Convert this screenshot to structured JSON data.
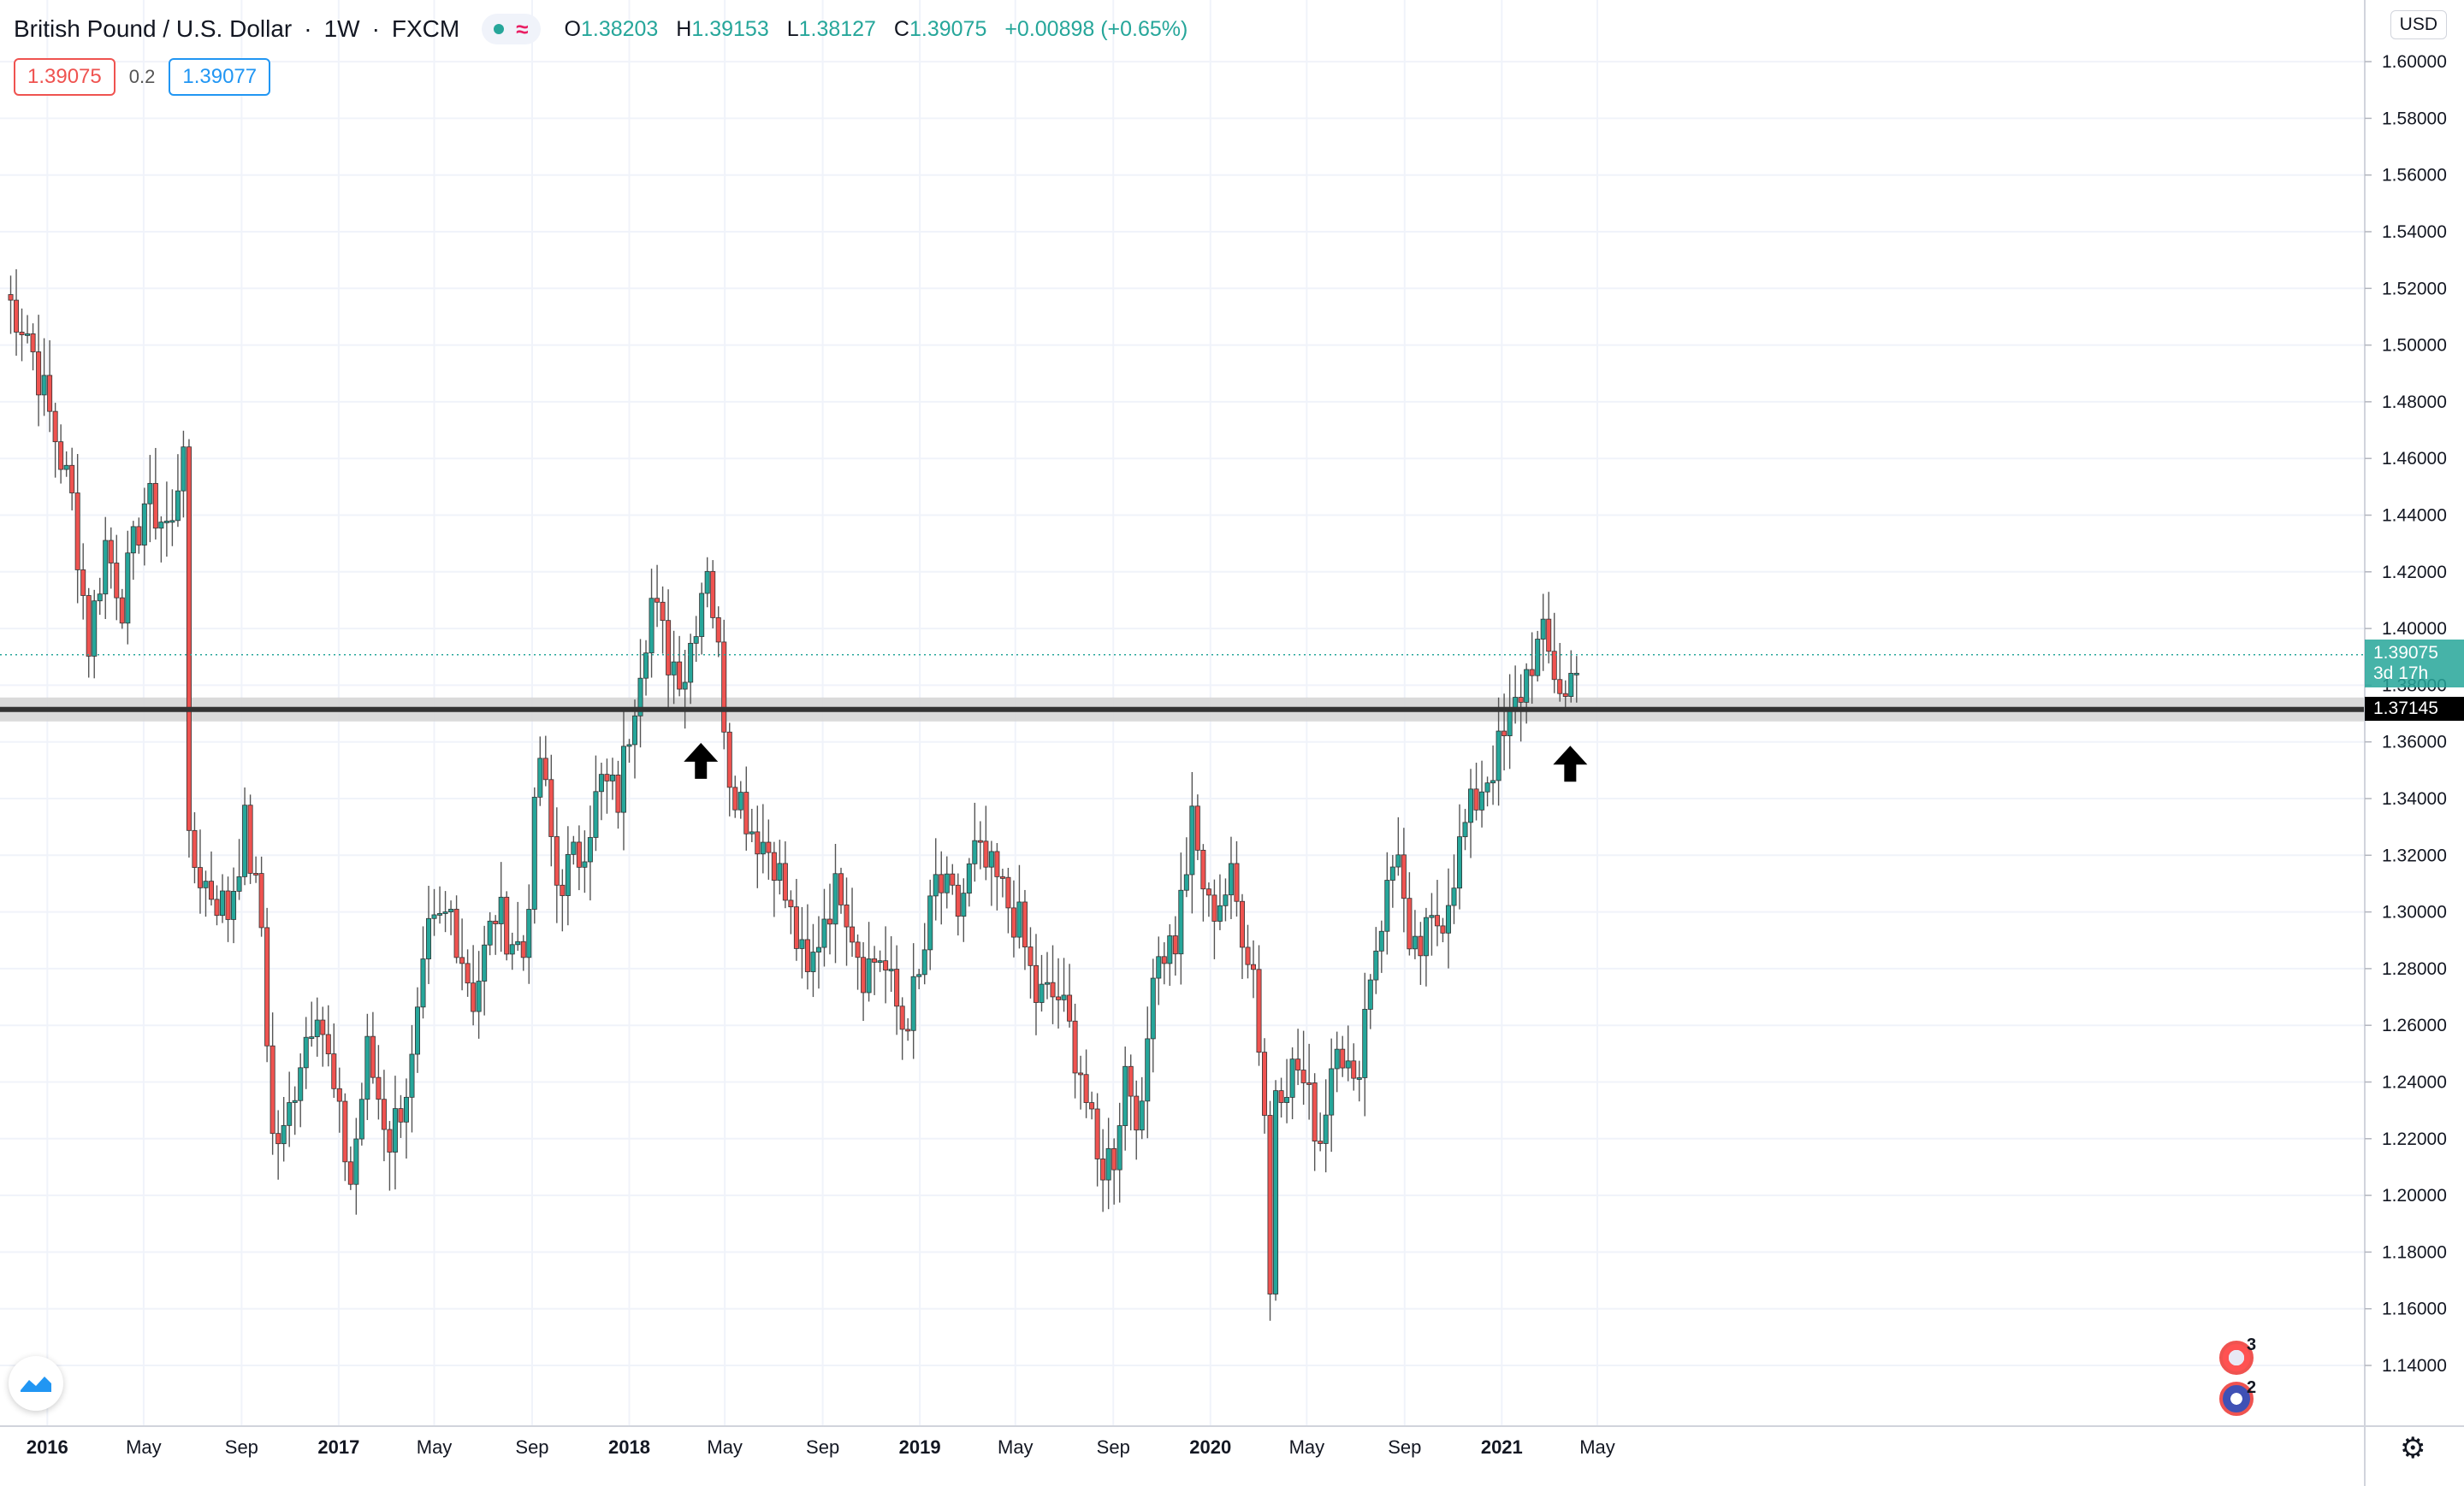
{
  "header": {
    "symbol_name": "British Pound / U.S. Dollar",
    "interval": "1W",
    "exchange": "FXCM",
    "ohlc": {
      "open_label": "O",
      "open": "1.38203",
      "high_label": "H",
      "high": "1.39153",
      "low_label": "L",
      "low": "1.38127",
      "close_label": "C",
      "close": "1.39075",
      "change": "+0.00898 (+0.65%)"
    }
  },
  "quote": {
    "sell": "1.39075",
    "spread": "0.2",
    "buy": "1.39077"
  },
  "price_axis": {
    "currency": "USD",
    "current_price": "1.39075",
    "countdown": "3d 17h",
    "level_price": "1.37145"
  },
  "events": {
    "us_count": "3",
    "gb_count": "2"
  },
  "colors": {
    "up": "#26a69a",
    "down": "#ef5350",
    "level_line": "#333333",
    "level_band": "#d6d6d6"
  },
  "icons": {
    "logo": "tradingview-logo-icon",
    "settings": "gear-icon",
    "arrow": "arrow-up-icon"
  },
  "chart_data": {
    "type": "candlestick",
    "ylim": [
      1.13,
      1.61
    ],
    "y_ticks": [
      "1.14000",
      "1.16000",
      "1.18000",
      "1.20000",
      "1.22000",
      "1.24000",
      "1.26000",
      "1.28000",
      "1.30000",
      "1.32000",
      "1.34000",
      "1.36000",
      "1.38000",
      "1.40000",
      "1.42000",
      "1.44000",
      "1.46000",
      "1.48000",
      "1.50000",
      "1.52000",
      "1.54000",
      "1.56000",
      "1.58000",
      "1.60000"
    ],
    "x_start": "2015-11-09",
    "x_ticks": [
      {
        "label": "2016",
        "date": "2016-01-01",
        "year": true
      },
      {
        "label": "May",
        "date": "2016-05-01"
      },
      {
        "label": "Sep",
        "date": "2016-09-01"
      },
      {
        "label": "2017",
        "date": "2017-01-01",
        "year": true
      },
      {
        "label": "May",
        "date": "2017-05-01"
      },
      {
        "label": "Sep",
        "date": "2017-09-01"
      },
      {
        "label": "2018",
        "date": "2018-01-01",
        "year": true
      },
      {
        "label": "May",
        "date": "2018-05-01"
      },
      {
        "label": "Sep",
        "date": "2018-09-01"
      },
      {
        "label": "2019",
        "date": "2019-01-01",
        "year": true
      },
      {
        "label": "May",
        "date": "2019-05-01"
      },
      {
        "label": "Sep",
        "date": "2019-09-01"
      },
      {
        "label": "2020",
        "date": "2020-01-01",
        "year": true
      },
      {
        "label": "May",
        "date": "2020-05-01"
      },
      {
        "label": "Sep",
        "date": "2020-09-01"
      },
      {
        "label": "2021",
        "date": "2021-01-01",
        "year": true
      },
      {
        "label": "May",
        "date": "2021-05-01"
      }
    ],
    "horizontal_level": 1.37145,
    "last_price": 1.39075,
    "annotations": [
      {
        "type": "arrow-up",
        "date": "2018-04-01",
        "price": 1.353
      },
      {
        "type": "arrow-up",
        "date": "2021-03-28",
        "price": 1.352
      }
    ],
    "close_path": [
      [
        "2015-11-09",
        1.518
      ],
      [
        "2015-12-07",
        1.505
      ],
      [
        "2016-01-04",
        1.475
      ],
      [
        "2016-02-01",
        1.445
      ],
      [
        "2016-02-22",
        1.395
      ],
      [
        "2016-03-14",
        1.43
      ],
      [
        "2016-04-04",
        1.41
      ],
      [
        "2016-05-02",
        1.445
      ],
      [
        "2016-06-06",
        1.435
      ],
      [
        "2016-06-20",
        1.47
      ],
      [
        "2016-06-27",
        1.32
      ],
      [
        "2016-07-18",
        1.31
      ],
      [
        "2016-08-15",
        1.3
      ],
      [
        "2016-09-05",
        1.33
      ],
      [
        "2016-09-26",
        1.295
      ],
      [
        "2016-10-10",
        1.22
      ],
      [
        "2016-10-24",
        1.22
      ],
      [
        "2016-11-14",
        1.25
      ],
      [
        "2016-12-05",
        1.27
      ],
      [
        "2016-12-26",
        1.235
      ],
      [
        "2017-01-16",
        1.205
      ],
      [
        "2017-02-06",
        1.25
      ],
      [
        "2017-03-06",
        1.22
      ],
      [
        "2017-04-03",
        1.245
      ],
      [
        "2017-04-24",
        1.29
      ],
      [
        "2017-05-22",
        1.3
      ],
      [
        "2017-06-19",
        1.27
      ],
      [
        "2017-07-17",
        1.3
      ],
      [
        "2017-08-21",
        1.285
      ],
      [
        "2017-09-11",
        1.355
      ],
      [
        "2017-10-02",
        1.31
      ],
      [
        "2017-10-30",
        1.32
      ],
      [
        "2017-11-27",
        1.345
      ],
      [
        "2017-12-18",
        1.34
      ],
      [
        "2018-01-15",
        1.39
      ],
      [
        "2018-01-29",
        1.41
      ],
      [
        "2018-02-19",
        1.39
      ],
      [
        "2018-03-12",
        1.385
      ],
      [
        "2018-04-09",
        1.425
      ],
      [
        "2018-04-23",
        1.39
      ],
      [
        "2018-05-07",
        1.35
      ],
      [
        "2018-06-04",
        1.33
      ],
      [
        "2018-07-02",
        1.32
      ],
      [
        "2018-08-13",
        1.275
      ],
      [
        "2018-09-03",
        1.3
      ],
      [
        "2018-09-24",
        1.31
      ],
      [
        "2018-10-22",
        1.28
      ],
      [
        "2018-11-12",
        1.285
      ],
      [
        "2018-12-10",
        1.26
      ],
      [
        "2018-12-31",
        1.275
      ],
      [
        "2019-01-21",
        1.31
      ],
      [
        "2019-02-18",
        1.3
      ],
      [
        "2019-03-11",
        1.32
      ],
      [
        "2019-04-08",
        1.31
      ],
      [
        "2019-05-06",
        1.295
      ],
      [
        "2019-05-27",
        1.27
      ],
      [
        "2019-06-24",
        1.27
      ],
      [
        "2019-07-22",
        1.245
      ],
      [
        "2019-08-12",
        1.21
      ],
      [
        "2019-09-02",
        1.215
      ],
      [
        "2019-09-16",
        1.245
      ],
      [
        "2019-10-07",
        1.225
      ],
      [
        "2019-10-21",
        1.285
      ],
      [
        "2019-11-18",
        1.29
      ],
      [
        "2019-12-09",
        1.33
      ],
      [
        "2019-12-30",
        1.3
      ],
      [
        "2020-01-27",
        1.31
      ],
      [
        "2020-02-24",
        1.28
      ],
      [
        "2020-03-09",
        1.23
      ],
      [
        "2020-03-16",
        1.165
      ],
      [
        "2020-03-23",
        1.24
      ],
      [
        "2020-04-20",
        1.245
      ],
      [
        "2020-05-18",
        1.22
      ],
      [
        "2020-06-08",
        1.26
      ],
      [
        "2020-06-29",
        1.235
      ],
      [
        "2020-07-20",
        1.28
      ],
      [
        "2020-08-24",
        1.325
      ],
      [
        "2020-09-07",
        1.28
      ],
      [
        "2020-09-28",
        1.29
      ],
      [
        "2020-10-19",
        1.3
      ],
      [
        "2020-11-16",
        1.33
      ],
      [
        "2020-12-07",
        1.345
      ],
      [
        "2021-01-04",
        1.36
      ],
      [
        "2021-02-08",
        1.39
      ],
      [
        "2021-02-22",
        1.395
      ],
      [
        "2021-03-08",
        1.385
      ],
      [
        "2021-03-22",
        1.375
      ],
      [
        "2021-04-05",
        1.391
      ]
    ]
  }
}
